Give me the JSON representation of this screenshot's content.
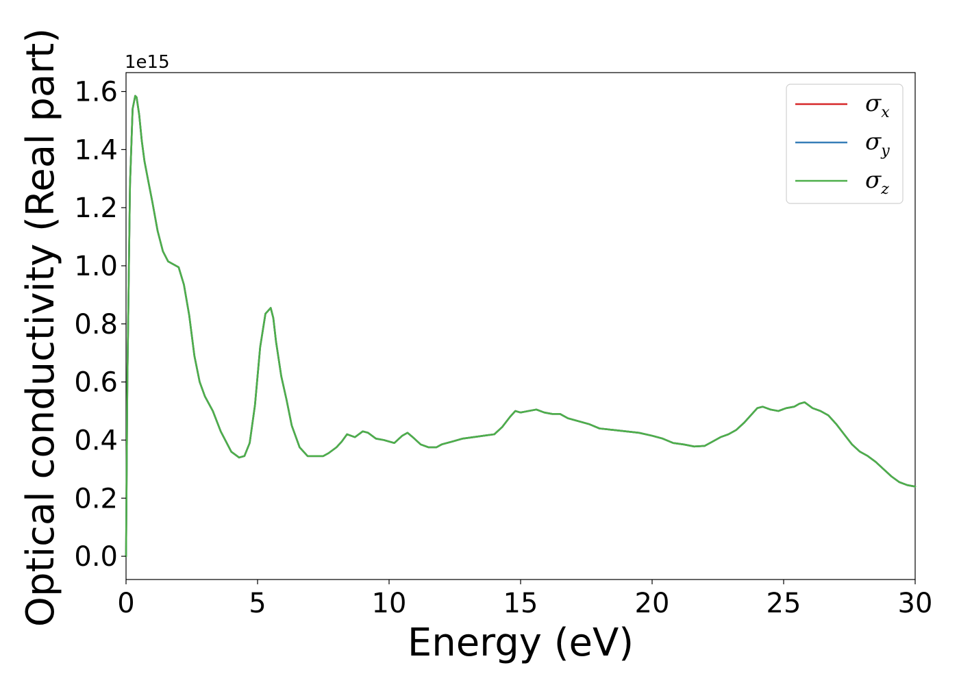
{
  "chart_data": {
    "type": "line",
    "xlabel": "Energy (eV)",
    "ylabel": "Optical conductivity (Real part)",
    "y_offset_label": "1e15",
    "xlim": [
      0,
      30
    ],
    "ylim": [
      -0.08,
      1.665
    ],
    "grid": false,
    "legend_placement": "top-right",
    "x_ticks": [
      0,
      5,
      10,
      15,
      20,
      25,
      30
    ],
    "x_tick_labels": [
      "0",
      "5",
      "10",
      "15",
      "20",
      "25",
      "30"
    ],
    "y_ticks": [
      0.0,
      0.2,
      0.4,
      0.6,
      0.8,
      1.0,
      1.2,
      1.4,
      1.6
    ],
    "y_tick_labels": [
      "0.0",
      "0.2",
      "0.4",
      "0.6",
      "0.8",
      "1.0",
      "1.2",
      "1.4",
      "1.6"
    ],
    "x": [
      0.0,
      0.05,
      0.15,
      0.25,
      0.35,
      0.4,
      0.5,
      0.6,
      0.7,
      0.85,
      1.0,
      1.2,
      1.4,
      1.6,
      1.8,
      2.0,
      2.2,
      2.4,
      2.6,
      2.8,
      3.0,
      3.3,
      3.6,
      4.0,
      4.3,
      4.5,
      4.7,
      4.9,
      5.1,
      5.3,
      5.5,
      5.6,
      5.7,
      5.9,
      6.1,
      6.3,
      6.6,
      6.9,
      7.1,
      7.3,
      7.5,
      7.7,
      8.0,
      8.2,
      8.4,
      8.7,
      9.0,
      9.2,
      9.5,
      9.8,
      10.2,
      10.5,
      10.7,
      10.9,
      11.2,
      11.5,
      11.8,
      12.0,
      12.4,
      12.8,
      13.2,
      13.6,
      14.0,
      14.3,
      14.6,
      14.8,
      15.0,
      15.3,
      15.6,
      15.9,
      16.2,
      16.5,
      16.8,
      17.2,
      17.6,
      18.0,
      18.5,
      19.0,
      19.5,
      20.0,
      20.4,
      20.8,
      21.2,
      21.6,
      22.0,
      22.3,
      22.6,
      22.9,
      23.2,
      23.5,
      23.8,
      24.0,
      24.2,
      24.5,
      24.8,
      25.1,
      25.4,
      25.6,
      25.8,
      26.1,
      26.4,
      26.7,
      27.0,
      27.3,
      27.6,
      27.9,
      28.2,
      28.5,
      28.8,
      29.1,
      29.4,
      29.7,
      30.0
    ],
    "series": [
      {
        "name": "σx",
        "legend_symbol": "σ",
        "legend_sub": "x",
        "color": "#d62728",
        "values": [
          0.0,
          0.6,
          1.28,
          1.54,
          1.585,
          1.58,
          1.52,
          1.43,
          1.36,
          1.29,
          1.22,
          1.12,
          1.05,
          1.015,
          1.005,
          0.995,
          0.935,
          0.83,
          0.69,
          0.6,
          0.55,
          0.5,
          0.43,
          0.36,
          0.34,
          0.345,
          0.39,
          0.52,
          0.72,
          0.835,
          0.855,
          0.82,
          0.74,
          0.62,
          0.54,
          0.45,
          0.375,
          0.345,
          0.345,
          0.345,
          0.345,
          0.355,
          0.375,
          0.395,
          0.42,
          0.41,
          0.43,
          0.425,
          0.405,
          0.4,
          0.39,
          0.415,
          0.425,
          0.41,
          0.385,
          0.375,
          0.375,
          0.385,
          0.395,
          0.405,
          0.41,
          0.415,
          0.42,
          0.445,
          0.48,
          0.5,
          0.495,
          0.5,
          0.505,
          0.495,
          0.49,
          0.49,
          0.475,
          0.465,
          0.455,
          0.44,
          0.435,
          0.43,
          0.425,
          0.415,
          0.405,
          0.39,
          0.385,
          0.378,
          0.38,
          0.395,
          0.41,
          0.42,
          0.435,
          0.46,
          0.49,
          0.51,
          0.515,
          0.505,
          0.5,
          0.51,
          0.515,
          0.525,
          0.53,
          0.51,
          0.5,
          0.485,
          0.455,
          0.42,
          0.385,
          0.36,
          0.345,
          0.325,
          0.3,
          0.275,
          0.255,
          0.245,
          0.24
        ]
      },
      {
        "name": "σy",
        "legend_symbol": "σ",
        "legend_sub": "y",
        "color": "#377eb8",
        "values": [
          0.0,
          0.6,
          1.28,
          1.54,
          1.585,
          1.58,
          1.52,
          1.43,
          1.36,
          1.29,
          1.22,
          1.12,
          1.05,
          1.015,
          1.005,
          0.995,
          0.935,
          0.83,
          0.69,
          0.6,
          0.55,
          0.5,
          0.43,
          0.36,
          0.34,
          0.345,
          0.39,
          0.52,
          0.72,
          0.835,
          0.855,
          0.82,
          0.74,
          0.62,
          0.54,
          0.45,
          0.375,
          0.345,
          0.345,
          0.345,
          0.345,
          0.355,
          0.375,
          0.395,
          0.42,
          0.41,
          0.43,
          0.425,
          0.405,
          0.4,
          0.39,
          0.415,
          0.425,
          0.41,
          0.385,
          0.375,
          0.375,
          0.385,
          0.395,
          0.405,
          0.41,
          0.415,
          0.42,
          0.445,
          0.48,
          0.5,
          0.495,
          0.5,
          0.505,
          0.495,
          0.49,
          0.49,
          0.475,
          0.465,
          0.455,
          0.44,
          0.435,
          0.43,
          0.425,
          0.415,
          0.405,
          0.39,
          0.385,
          0.378,
          0.38,
          0.395,
          0.41,
          0.42,
          0.435,
          0.46,
          0.49,
          0.51,
          0.515,
          0.505,
          0.5,
          0.51,
          0.515,
          0.525,
          0.53,
          0.51,
          0.5,
          0.485,
          0.455,
          0.42,
          0.385,
          0.36,
          0.345,
          0.325,
          0.3,
          0.275,
          0.255,
          0.245,
          0.24
        ]
      },
      {
        "name": "σz",
        "legend_symbol": "σ",
        "legend_sub": "z",
        "color": "#4daf4a",
        "values": [
          0.0,
          0.6,
          1.28,
          1.54,
          1.585,
          1.58,
          1.52,
          1.43,
          1.36,
          1.29,
          1.22,
          1.12,
          1.05,
          1.015,
          1.005,
          0.995,
          0.935,
          0.83,
          0.69,
          0.6,
          0.55,
          0.5,
          0.43,
          0.36,
          0.34,
          0.345,
          0.39,
          0.52,
          0.72,
          0.835,
          0.855,
          0.82,
          0.74,
          0.62,
          0.54,
          0.45,
          0.375,
          0.345,
          0.345,
          0.345,
          0.345,
          0.355,
          0.375,
          0.395,
          0.42,
          0.41,
          0.43,
          0.425,
          0.405,
          0.4,
          0.39,
          0.415,
          0.425,
          0.41,
          0.385,
          0.375,
          0.375,
          0.385,
          0.395,
          0.405,
          0.41,
          0.415,
          0.42,
          0.445,
          0.48,
          0.5,
          0.495,
          0.5,
          0.505,
          0.495,
          0.49,
          0.49,
          0.475,
          0.465,
          0.455,
          0.44,
          0.435,
          0.43,
          0.425,
          0.415,
          0.405,
          0.39,
          0.385,
          0.378,
          0.38,
          0.395,
          0.41,
          0.42,
          0.435,
          0.46,
          0.49,
          0.51,
          0.515,
          0.505,
          0.5,
          0.51,
          0.515,
          0.525,
          0.53,
          0.51,
          0.5,
          0.485,
          0.455,
          0.42,
          0.385,
          0.36,
          0.345,
          0.325,
          0.3,
          0.275,
          0.255,
          0.245,
          0.24
        ]
      }
    ]
  }
}
